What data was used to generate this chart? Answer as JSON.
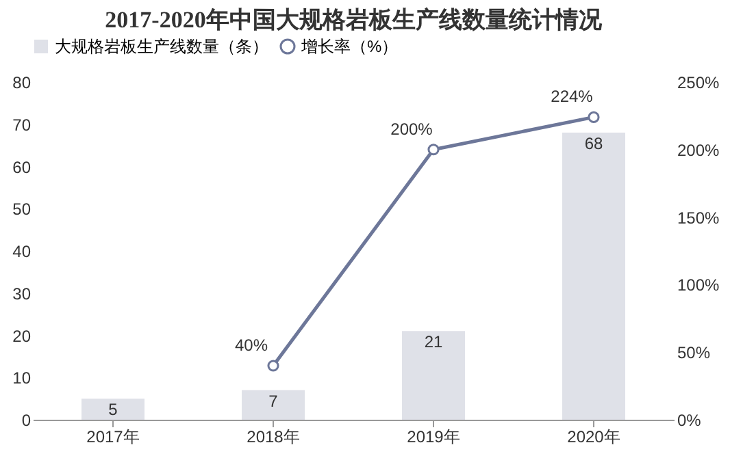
{
  "chart_data": {
    "type": "bar",
    "title": "2017-2020年中国大规格岩板生产线数量统计情况",
    "categories": [
      "2017年",
      "2018年",
      "2019年",
      "2020年"
    ],
    "series": [
      {
        "name": "大规格岩板生产线数量（条）",
        "color": "#dfe1e8",
        "values": [
          5,
          7,
          21,
          68
        ],
        "value_labels": [
          "5",
          "7",
          "21",
          "68"
        ]
      },
      {
        "name": "增长率（%）",
        "type": "line",
        "axis": "y2",
        "color": "#6d7799",
        "values": [
          null,
          40,
          200,
          224
        ],
        "value_labels": [
          null,
          "40%",
          "200%",
          "224%"
        ]
      }
    ],
    "ylim": [
      0,
      80
    ],
    "yticks": [
      0,
      10,
      20,
      30,
      40,
      50,
      60,
      70,
      80
    ],
    "y2lim": [
      0,
      250
    ],
    "y2ticks": [
      {
        "value": 0,
        "label": "0%"
      },
      {
        "value": 50,
        "label": "50%"
      },
      {
        "value": 100,
        "label": "100%"
      },
      {
        "value": 150,
        "label": "150%"
      },
      {
        "value": 200,
        "label": "200%"
      },
      {
        "value": 250,
        "label": "250%"
      }
    ],
    "legend": "top",
    "marker": "circle",
    "line_style": "solid"
  }
}
